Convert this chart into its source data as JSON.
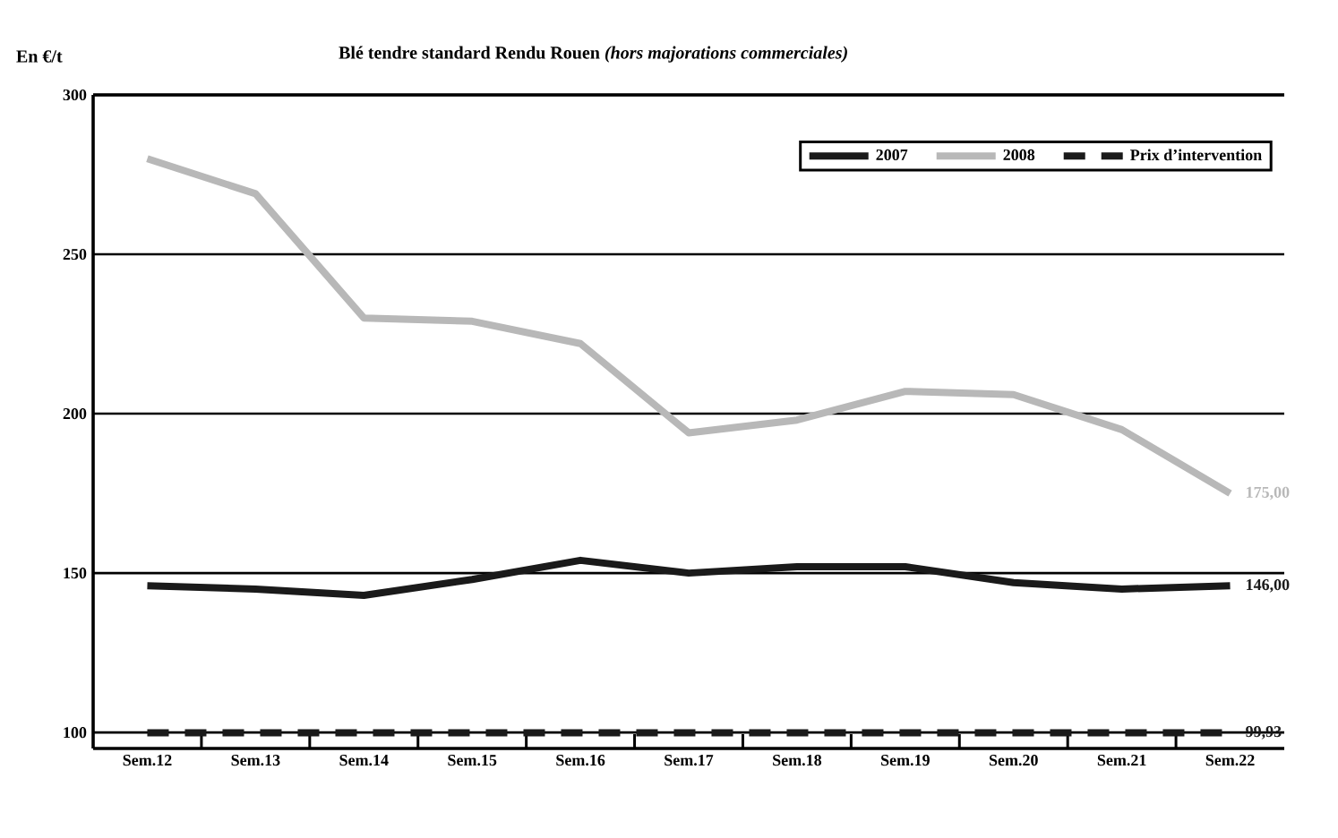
{
  "chart_data": {
    "type": "line",
    "title": "Blé tendre standard Rendu Rouen *(hors majorations commerciales)*",
    "ylabel": "En €/t",
    "categories": [
      "Sem.12",
      "Sem.13",
      "Sem.14",
      "Sem.15",
      "Sem.16",
      "Sem.17",
      "Sem.18",
      "Sem.19",
      "Sem.20",
      "Sem.21",
      "Sem.22"
    ],
    "series": [
      {
        "name": "2007",
        "color": "#1a1a1a",
        "line_style": "solid",
        "values": [
          146,
          145,
          143,
          148,
          154,
          150,
          152,
          152,
          147,
          145,
          146.0
        ],
        "value_labels": [
          null,
          null,
          null,
          null,
          null,
          null,
          null,
          null,
          null,
          null,
          "146,00"
        ]
      },
      {
        "name": "2008",
        "color": "#b8b8b8",
        "line_style": "solid",
        "values": [
          280,
          269,
          230,
          229,
          222,
          194,
          198,
          207,
          206,
          195,
          175.0
        ],
        "value_labels": [
          null,
          null,
          null,
          null,
          null,
          null,
          null,
          null,
          null,
          null,
          "175,00"
        ]
      },
      {
        "name": "Prix d’intervention",
        "color": "#1a1a1a",
        "line_style": "dashed",
        "values": [
          99.93,
          99.93,
          99.93,
          99.93,
          99.93,
          99.93,
          99.93,
          99.93,
          99.93,
          99.93,
          99.93
        ],
        "value_labels": [
          null,
          null,
          null,
          null,
          null,
          null,
          null,
          null,
          null,
          null,
          "99,93"
        ]
      }
    ],
    "ylim": [
      95,
      300
    ],
    "yticks": [
      100,
      150,
      200,
      250,
      300
    ],
    "grid": "y",
    "legend": "top right",
    "marker": "none"
  }
}
